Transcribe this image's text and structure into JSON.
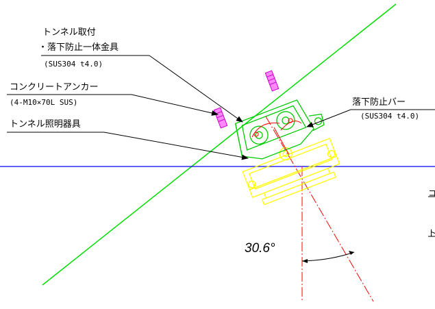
{
  "labels": {
    "bracket_line1": "トンネル取付",
    "bracket_line2": "・落下防止一体金具",
    "bracket_spec": "(SUS304 t4.0)",
    "anchor": "コンクリートアンカー",
    "anchor_spec": "(4-M10×70L SUS)",
    "fixture": "トンネル照明器具",
    "fallbar": "落下防止バー",
    "fallbar_spec": "(SUS304 t4.0)",
    "angle": "30.6°",
    "cut1": "コ",
    "cut2": "ト"
  },
  "colors": {
    "tunnel_line": "#00dd00",
    "horizontal_line": "#0000ff",
    "fixture": "#ffff00",
    "bracket": "#00cc00",
    "anchor": "#ff33ff",
    "centerline": "#ff0000",
    "leader": "#000000",
    "detail_red": "#ff0000"
  }
}
